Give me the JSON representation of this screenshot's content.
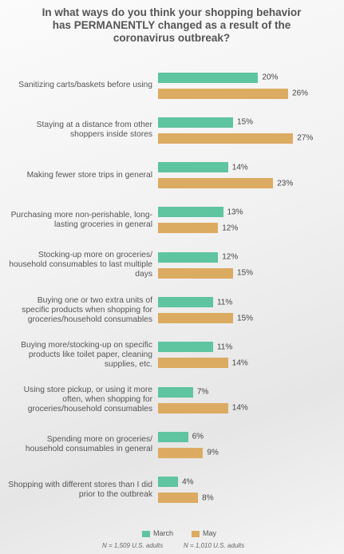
{
  "chart_data": {
    "type": "bar",
    "orientation": "horizontal",
    "title": "In what ways do you think your shopping behavior has PERMANENTLY changed as a result of the coronavirus outbreak?",
    "categories": [
      "Sanitizing carts/baskets before using",
      "Staying at a distance from other shoppers inside stores",
      "Making fewer store trips in general",
      "Purchasing more non-perishable, long-lasting groceries in general",
      "Stocking-up more on groceries/ household consumables to last multiple days",
      "Buying one or two extra units of specific products when shopping for groceries/household consumables",
      "Buying more/stocking-up on specific products like toilet paper, cleaning supplies, etc.",
      "Using store pickup, or using it more often, when shopping for groceries/household consumables",
      "Spending more on groceries/ household consumables in general",
      "Shopping with different stores than I did prior to the outbreak"
    ],
    "series": [
      {
        "name": "March",
        "note": "N = 1,509 U.S. adults",
        "color": "#5fc4a0",
        "values": [
          20,
          15,
          14,
          13,
          12,
          11,
          11,
          7,
          6,
          4
        ],
        "value_labels": [
          "20%",
          "15%",
          "14%",
          "13%",
          "12%",
          "11%",
          "11%",
          "7%",
          "6%",
          "4%"
        ]
      },
      {
        "name": "May",
        "note": "N = 1,010 U.S. adults",
        "color": "#dcab62",
        "values": [
          26,
          27,
          23,
          12,
          15,
          15,
          14,
          14,
          9,
          8
        ],
        "value_labels": [
          "26%",
          "27%",
          "23%",
          "12%",
          "15%",
          "15%",
          "14%",
          "14%",
          "9%",
          "8%"
        ]
      }
    ]
  }
}
